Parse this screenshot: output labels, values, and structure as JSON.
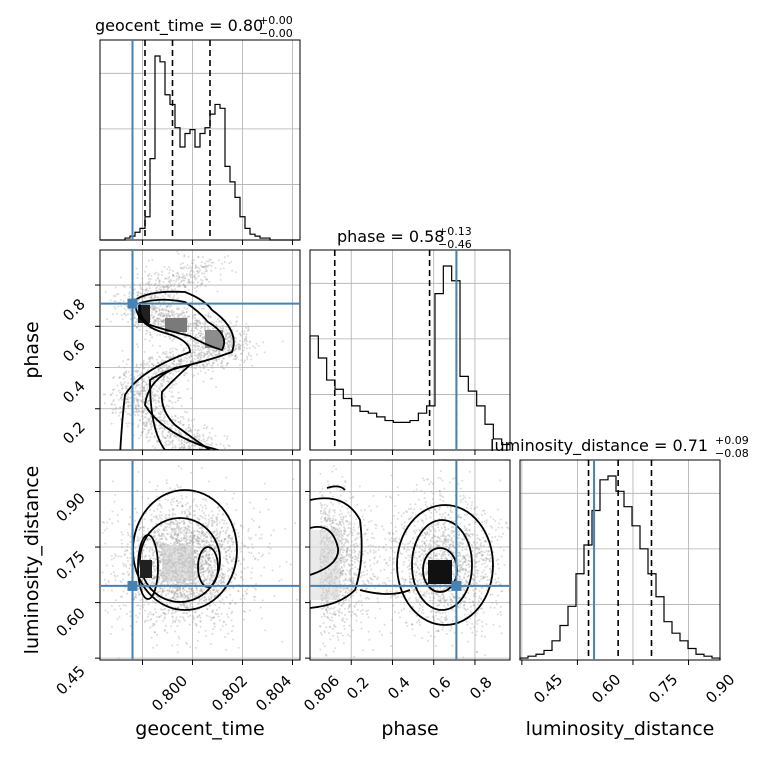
{
  "chart_data": {
    "type": "corner",
    "parameters": [
      "geocent_time",
      "phase",
      "luminosity_distance"
    ],
    "truths": {
      "geocent_time": 0.7996,
      "phase": 0.71,
      "luminosity_distance": 0.645
    },
    "ranges": {
      "geocent_time": [
        0.7983,
        0.8063
      ],
      "phase": [
        0.0,
        0.97
      ],
      "luminosity_distance": [
        0.445,
        0.985
      ]
    },
    "axis_ticks": {
      "geocent_time": [
        "0.800",
        "0.802",
        "0.804",
        "0.806"
      ],
      "phase": [
        "0.2",
        "0.4",
        "0.6",
        "0.8"
      ],
      "luminosity_distance": [
        "0.45",
        "0.60",
        "0.75",
        "0.90"
      ]
    },
    "titles": [
      {
        "label": "geocent_time = 0.80",
        "sup": "+0.00",
        "sub": "−0.00"
      },
      {
        "label": "phase = 0.58",
        "sup": "+0.13",
        "sub": "−0.46"
      },
      {
        "label": "luminosity_distance = 0.71",
        "sup": "+0.09",
        "sub": "−0.08"
      }
    ],
    "quantiles": {
      "geocent_time": [
        0.8001,
        0.8012,
        0.8027
      ],
      "phase": [
        0.12,
        0.58,
        0.71
      ],
      "luminosity_distance": [
        0.63,
        0.71,
        0.8
      ]
    },
    "histograms": {
      "geocent_time": {
        "edges_range": [
          0.7983,
          0.8063
        ],
        "counts": [
          0,
          0,
          0,
          0,
          0,
          1,
          2,
          4,
          6,
          12,
          42,
          95,
          92,
          75,
          70,
          58,
          48,
          55,
          57,
          48,
          55,
          58,
          65,
          70,
          68,
          38,
          30,
          22,
          12,
          6,
          3,
          2,
          1,
          1,
          0,
          0,
          0,
          0,
          0,
          0
        ]
      },
      "phase": {
        "edges_range": [
          0.0,
          0.97
        ],
        "counts": [
          62,
          50,
          38,
          33,
          28,
          24,
          21,
          20,
          18,
          16,
          15,
          15,
          16,
          20,
          24,
          85,
          100,
          92,
          40,
          32,
          24,
          14,
          6,
          3
        ]
      },
      "luminosity_distance": {
        "edges_range": [
          0.445,
          0.985
        ],
        "counts": [
          1,
          2,
          3,
          5,
          10,
          18,
          28,
          45,
          60,
          78,
          94,
          96,
          88,
          80,
          70,
          58,
          45,
          33,
          20,
          14,
          10,
          6,
          3,
          2,
          1
        ]
      }
    }
  }
}
